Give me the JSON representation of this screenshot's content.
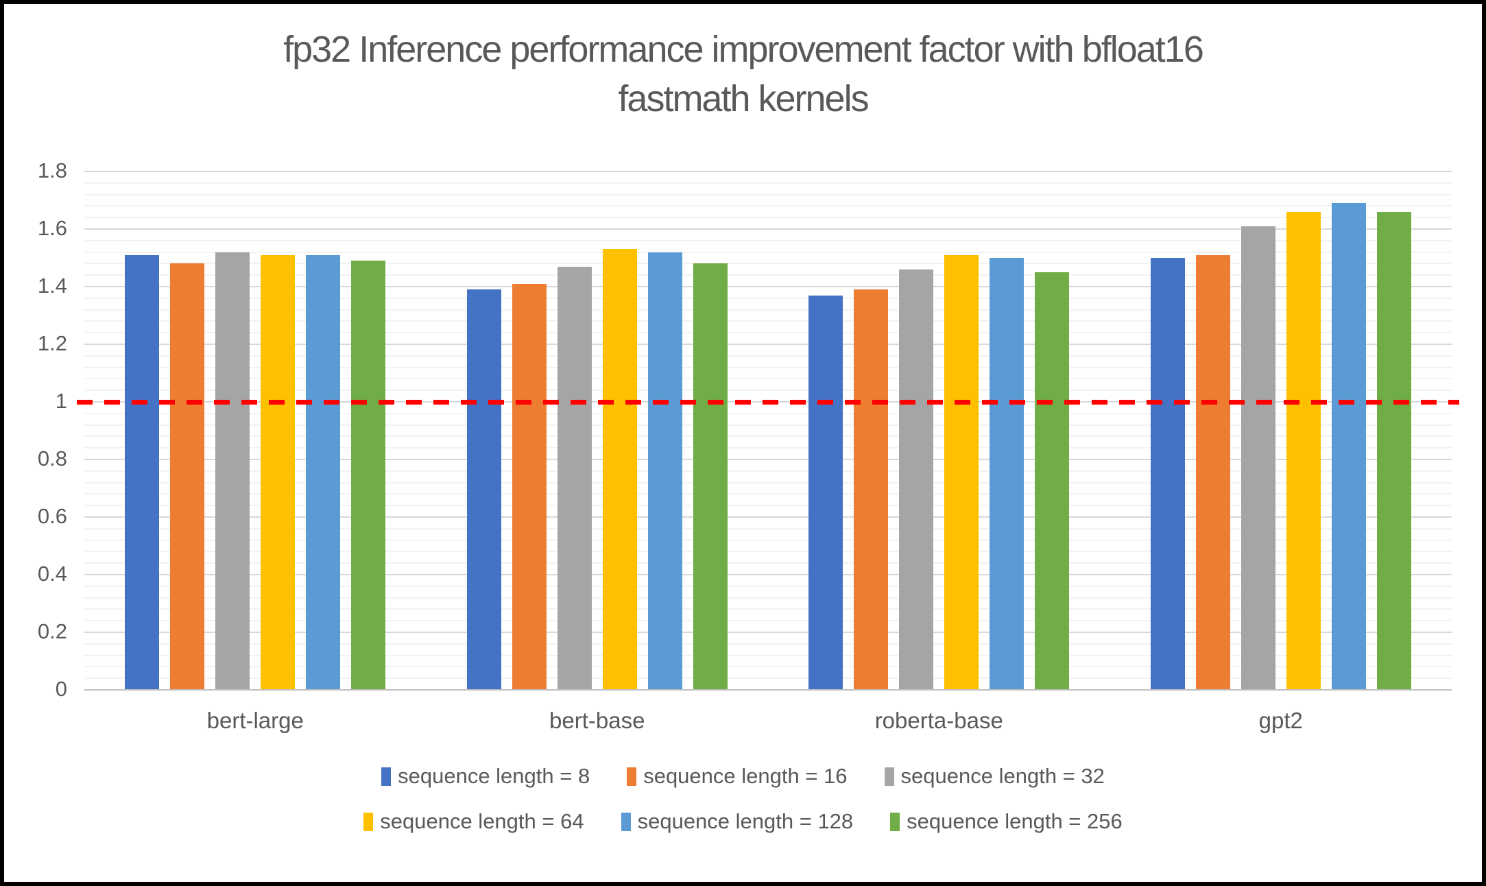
{
  "title_lines": [
    "fp32 Inference performance improvement factor with bfloat16",
    "fastmath kernels"
  ],
  "text_color": "#595959",
  "chart_data": {
    "type": "bar",
    "title": "fp32 Inference performance improvement factor with bfloat16 fastmath kernels",
    "categories": [
      "bert-large",
      "bert-base",
      "roberta-base",
      "gpt2"
    ],
    "series": [
      {
        "name": "sequence length = 8",
        "color": "#4472C4",
        "values": [
          1.51,
          1.39,
          1.37,
          1.5
        ]
      },
      {
        "name": "sequence length = 16",
        "color": "#ED7D31",
        "values": [
          1.48,
          1.41,
          1.39,
          1.51
        ]
      },
      {
        "name": "sequence length = 32",
        "color": "#A5A5A5",
        "values": [
          1.52,
          1.47,
          1.46,
          1.61
        ]
      },
      {
        "name": "sequence length = 64",
        "color": "#FFC000",
        "values": [
          1.51,
          1.53,
          1.51,
          1.66
        ]
      },
      {
        "name": "sequence length = 128",
        "color": "#5B9BD5",
        "values": [
          1.51,
          1.52,
          1.5,
          1.69
        ]
      },
      {
        "name": "sequence length = 256",
        "color": "#70AD47",
        "values": [
          1.49,
          1.48,
          1.45,
          1.66
        ]
      }
    ],
    "ylim": [
      0,
      1.8
    ],
    "ytick_labels": [
      "0",
      "0.2",
      "0.4",
      "0.6",
      "0.8",
      "1",
      "1.2",
      "1.4",
      "1.6",
      "1.8"
    ],
    "ytick_step": 0.2,
    "minor_gridline_step": 0.04,
    "grid": "horizontal major and minor, no vertical",
    "legend_position": "bottom, two rows of three",
    "reference_line": {
      "y": 1,
      "style": "dashed",
      "color": "#FE0000"
    },
    "colors": {
      "major_gridline": "#D9D9D9",
      "minor_gridline": "#F2F2F2",
      "axis_line": "#BFBFBF",
      "text": "#595959"
    }
  }
}
